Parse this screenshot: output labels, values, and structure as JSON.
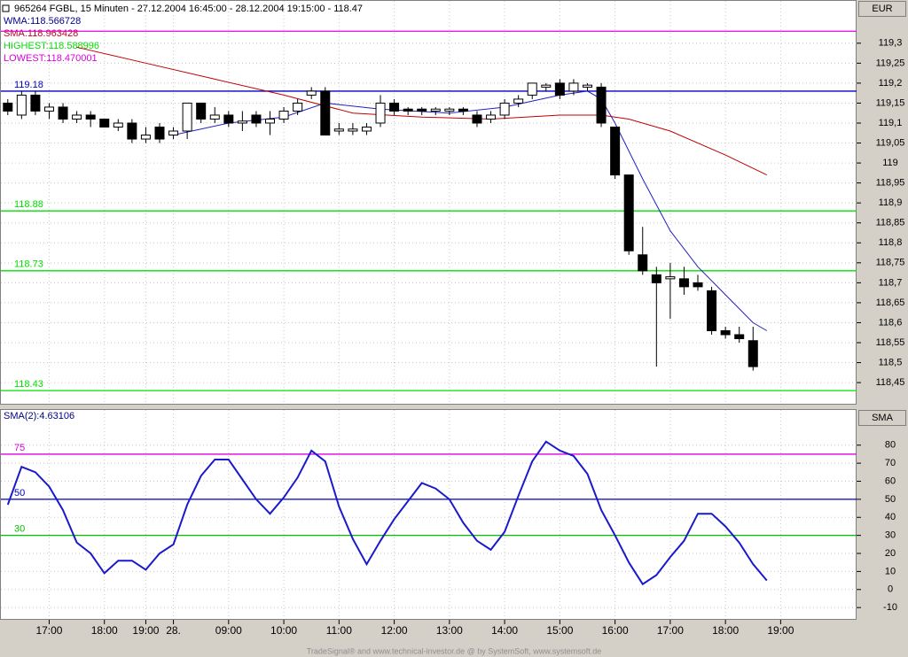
{
  "header": {
    "title": "965264  FGBL, 15 Minuten - 27.12.2004 16:45:00 - 28.12.2004 19:15:00 - 118.47",
    "legend": [
      {
        "label": "WMA:118.566728",
        "color": "#00008b"
      },
      {
        "label": "SMA:118.963428",
        "color": "#c00020"
      },
      {
        "label": "HIGHEST:118.588996",
        "color": "#00dd00"
      },
      {
        "label": "LOWEST:118.470001",
        "color": "#dd00dd"
      }
    ]
  },
  "footer": "TradeSignal® and www.technical-investor.de @ by SystemSoft, www.systemsoft.de",
  "chart_data": [
    {
      "type": "candlestick",
      "axis_label": "EUR",
      "xlim": [
        -0.5,
        61.5
      ],
      "ylim": [
        118.397,
        119.406
      ],
      "open": [
        119.15,
        119.12,
        119.17,
        119.13,
        119.14,
        119.11,
        119.12,
        119.11,
        119.09,
        119.1,
        119.06,
        119.09,
        119.07,
        119.08,
        119.15,
        119.11,
        119.12,
        119.1,
        119.12,
        119.1,
        119.11,
        119.13,
        119.17,
        119.18,
        119.08,
        119.08,
        119.08,
        119.1,
        119.15,
        119.135,
        119.135,
        119.13,
        119.13,
        119.135,
        119.12,
        119.11,
        119.12,
        119.15,
        119.17,
        119.19,
        119.2,
        119.18,
        119.19,
        119.19,
        119.09,
        118.97,
        118.77,
        118.72,
        118.71,
        118.71,
        118.7,
        118.68,
        118.58,
        118.57,
        118.555
      ],
      "high": [
        119.16,
        119.18,
        119.18,
        119.15,
        119.15,
        119.13,
        119.13,
        119.11,
        119.11,
        119.11,
        119.09,
        119.1,
        119.09,
        119.15,
        119.15,
        119.14,
        119.13,
        119.13,
        119.13,
        119.13,
        119.14,
        119.16,
        119.19,
        119.19,
        119.1,
        119.1,
        119.1,
        119.17,
        119.16,
        119.14,
        119.14,
        119.14,
        119.14,
        119.14,
        119.13,
        119.13,
        119.16,
        119.17,
        119.2,
        119.2,
        119.21,
        119.21,
        119.2,
        119.2,
        119.09,
        118.97,
        118.84,
        118.74,
        118.75,
        118.74,
        118.72,
        118.69,
        118.59,
        118.59,
        118.59
      ],
      "low": [
        119.12,
        119.11,
        119.12,
        119.11,
        119.1,
        119.1,
        119.09,
        119.09,
        119.08,
        119.05,
        119.05,
        119.05,
        119.06,
        119.06,
        119.1,
        119.1,
        119.09,
        119.08,
        119.09,
        119.07,
        119.1,
        119.12,
        119.16,
        119.07,
        119.07,
        119.07,
        119.07,
        119.09,
        119.12,
        119.12,
        119.12,
        119.12,
        119.12,
        119.12,
        119.09,
        119.1,
        119.11,
        119.14,
        119.16,
        119.18,
        119.16,
        119.17,
        119.18,
        119.09,
        118.96,
        118.77,
        118.72,
        118.49,
        118.61,
        118.67,
        118.68,
        118.57,
        118.56,
        118.55,
        118.48
      ],
      "close": [
        119.13,
        119.17,
        119.13,
        119.14,
        119.11,
        119.12,
        119.11,
        119.09,
        119.1,
        119.06,
        119.07,
        119.06,
        119.08,
        119.15,
        119.11,
        119.12,
        119.1,
        119.105,
        119.1,
        119.11,
        119.13,
        119.15,
        119.18,
        119.07,
        119.085,
        119.085,
        119.09,
        119.15,
        119.13,
        119.13,
        119.13,
        119.135,
        119.135,
        119.13,
        119.1,
        119.12,
        119.15,
        119.16,
        119.2,
        119.195,
        119.17,
        119.2,
        119.195,
        119.1,
        118.97,
        118.78,
        118.73,
        118.7,
        118.715,
        118.69,
        118.69,
        118.58,
        118.57,
        118.56,
        118.49
      ],
      "lines": [
        {
          "name": "WMA",
          "color": "#2020c0",
          "x": [
            12,
            16,
            20,
            23,
            27,
            32,
            36,
            40,
            42,
            43,
            44,
            46,
            48,
            50,
            52,
            54,
            55
          ],
          "values": [
            119.07,
            119.1,
            119.115,
            119.15,
            119.135,
            119.125,
            119.14,
            119.17,
            119.18,
            119.16,
            119.1,
            118.96,
            118.83,
            118.74,
            118.67,
            118.6,
            118.58
          ]
        },
        {
          "name": "SMA",
          "color": "#c00000",
          "x": [
            5,
            10,
            15,
            20,
            25,
            30,
            35,
            40,
            43,
            45,
            48,
            52,
            55
          ],
          "values": [
            119.29,
            119.25,
            119.21,
            119.17,
            119.125,
            119.115,
            119.11,
            119.12,
            119.12,
            119.11,
            119.08,
            119.02,
            118.97
          ]
        }
      ],
      "levels": [
        {
          "value": 119.33,
          "label": null,
          "color": "#e000e0"
        },
        {
          "value": 119.18,
          "label": "119.18",
          "color": "#0000c0"
        },
        {
          "value": 118.88,
          "label": "118.88",
          "color": "#00e000"
        },
        {
          "value": 118.73,
          "label": "118.73",
          "color": "#00e000"
        },
        {
          "value": 118.43,
          "label": "118.43",
          "color": "#00e000"
        }
      ],
      "yticks": [
        {
          "value": 119.3,
          "label": "119,3"
        },
        {
          "value": 119.25,
          "label": "119,25"
        },
        {
          "value": 119.2,
          "label": "119,2"
        },
        {
          "value": 119.15,
          "label": "119,15"
        },
        {
          "value": 119.1,
          "label": "119,1"
        },
        {
          "value": 119.05,
          "label": "119,05"
        },
        {
          "value": 119,
          "label": "119"
        },
        {
          "value": 118.95,
          "label": "118,95"
        },
        {
          "value": 118.9,
          "label": "118,9"
        },
        {
          "value": 118.85,
          "label": "118,85"
        },
        {
          "value": 118.8,
          "label": "118,8"
        },
        {
          "value": 118.75,
          "label": "118,75"
        },
        {
          "value": 118.7,
          "label": "118,7"
        },
        {
          "value": 118.65,
          "label": "118,65"
        },
        {
          "value": 118.6,
          "label": "118,6"
        },
        {
          "value": 118.55,
          "label": "118,55"
        },
        {
          "value": 118.5,
          "label": "118,5"
        },
        {
          "value": 118.45,
          "label": "118,45"
        }
      ]
    },
    {
      "type": "line",
      "title": "SMA(2):4.63106",
      "axis_label": "SMA",
      "color": "#1a1acc",
      "xlim": [
        -0.5,
        61.5
      ],
      "ylim": [
        -16.3,
        99.5
      ],
      "values": [
        47,
        68,
        65,
        57,
        44,
        26,
        20,
        9,
        16,
        16,
        11,
        20,
        25,
        47,
        63,
        72,
        72,
        61,
        50,
        42,
        51,
        62,
        77,
        71,
        46,
        28,
        14,
        27,
        39,
        49,
        59,
        56,
        50,
        37,
        27,
        22,
        32,
        52,
        71,
        82,
        77,
        74,
        64,
        44,
        30,
        15,
        3,
        8,
        18,
        27,
        42,
        42,
        35,
        26,
        14,
        5
      ],
      "levels": [
        {
          "value": 75,
          "label": "75",
          "color": "#e000e0"
        },
        {
          "value": 50,
          "label": "50",
          "color": "#0000c0"
        },
        {
          "value": 30,
          "label": "30",
          "color": "#00c000"
        }
      ],
      "yticks": [
        80,
        70,
        60,
        50,
        40,
        30,
        20,
        10,
        0,
        -10
      ],
      "xticks": [
        {
          "value": 3,
          "label": "17:00"
        },
        {
          "value": 7,
          "label": "18:00"
        },
        {
          "value": 10,
          "label": "19:00"
        },
        {
          "value": 12,
          "label": "28."
        },
        {
          "value": 16,
          "label": "09:00"
        },
        {
          "value": 20,
          "label": "10:00"
        },
        {
          "value": 24,
          "label": "11:00"
        },
        {
          "value": 28,
          "label": "12:00"
        },
        {
          "value": 32,
          "label": "13:00"
        },
        {
          "value": 36,
          "label": "14:00"
        },
        {
          "value": 40,
          "label": "15:00"
        },
        {
          "value": 44,
          "label": "16:00"
        },
        {
          "value": 48,
          "label": "17:00"
        },
        {
          "value": 52,
          "label": "18:00"
        },
        {
          "value": 56,
          "label": "19:00"
        }
      ]
    }
  ]
}
